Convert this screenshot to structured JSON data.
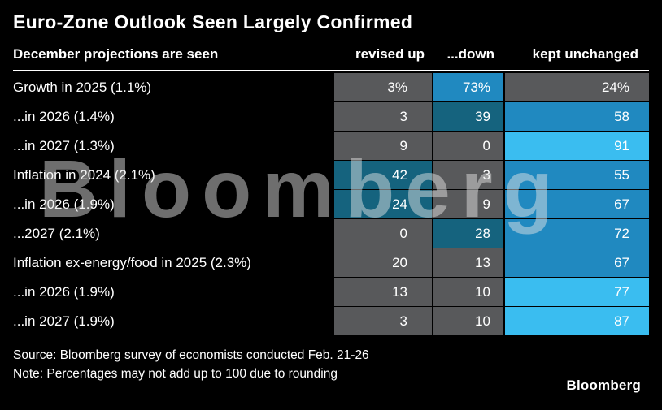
{
  "title": "Euro-Zone Outlook Seen Largely Confirmed",
  "watermark": "Bloomberg",
  "table": {
    "header": {
      "label": "December projections are seen",
      "revised_up": "revised up",
      "down": "...down",
      "kept_unchanged": "kept unchanged"
    },
    "rows": [
      {
        "label": "Growth in 2025 (1.1%)",
        "cells": [
          {
            "text": "3%",
            "color": "#58595b"
          },
          {
            "text": "73%",
            "color": "#2089c0"
          },
          {
            "text": "24%",
            "color": "#58595b"
          }
        ]
      },
      {
        "label": "...in 2026 (1.4%)",
        "cells": [
          {
            "text": "3",
            "color": "#58595b"
          },
          {
            "text": "39",
            "color": "#15637e"
          },
          {
            "text": "58",
            "color": "#2089c0"
          }
        ]
      },
      {
        "label": "...in 2027 (1.3%)",
        "cells": [
          {
            "text": "9",
            "color": "#58595b"
          },
          {
            "text": "0",
            "color": "#58595b"
          },
          {
            "text": "91",
            "color": "#3abdf0"
          }
        ]
      },
      {
        "label": "Inflation in 2024 (2.1%)",
        "cells": [
          {
            "text": "42",
            "color": "#15637e"
          },
          {
            "text": "3",
            "color": "#58595b"
          },
          {
            "text": "55",
            "color": "#2089c0"
          }
        ]
      },
      {
        "label": "...in 2026 (1.9%)",
        "cells": [
          {
            "text": "24",
            "color": "#15637e"
          },
          {
            "text": "9",
            "color": "#58595b"
          },
          {
            "text": "67",
            "color": "#2089c0"
          }
        ]
      },
      {
        "label": "...2027 (2.1%)",
        "cells": [
          {
            "text": "0",
            "color": "#58595b"
          },
          {
            "text": "28",
            "color": "#15637e"
          },
          {
            "text": "72",
            "color": "#2089c0"
          }
        ]
      },
      {
        "label": "Inflation ex-energy/food in 2025 (2.3%)",
        "cells": [
          {
            "text": "20",
            "color": "#58595b"
          },
          {
            "text": "13",
            "color": "#58595b"
          },
          {
            "text": "67",
            "color": "#2089c0"
          }
        ]
      },
      {
        "label": "...in 2026 (1.9%)",
        "cells": [
          {
            "text": "13",
            "color": "#58595b"
          },
          {
            "text": "10",
            "color": "#58595b"
          },
          {
            "text": "77",
            "color": "#3abdf0"
          }
        ]
      },
      {
        "label": "...in 2027 (1.9%)",
        "cells": [
          {
            "text": "3",
            "color": "#58595b"
          },
          {
            "text": "10",
            "color": "#58595b"
          },
          {
            "text": "87",
            "color": "#3abdf0"
          }
        ]
      }
    ]
  },
  "footer": {
    "source": "Source: Bloomberg survey of economists conducted Feb. 21-26",
    "note": "Note: Percentages may not add up to 100 due to rounding",
    "logo": "Bloomberg"
  },
  "colors": {
    "background": "#000000",
    "cell_gray": "#58595b",
    "cell_dark_blue": "#15637e",
    "cell_medium_blue": "#2089c0",
    "cell_light_blue": "#3abdf0",
    "text": "#ffffff"
  },
  "chart_data": {
    "type": "heatmap",
    "title": "Euro-Zone Outlook Seen Largely Confirmed",
    "subtitle": "December projections are seen",
    "columns": [
      "revised up",
      "...down",
      "kept unchanged"
    ],
    "rows": [
      "Growth in 2025 (1.1%)",
      "...in 2026 (1.4%)",
      "...in 2027 (1.3%)",
      "Inflation in 2024 (2.1%)",
      "...in 2026 (1.9%)",
      "...2027 (2.1%)",
      "Inflation ex-energy/food in 2025 (2.3%)",
      "...in 2026 (1.9%)",
      "...in 2027 (1.9%)"
    ],
    "values": [
      [
        3,
        73,
        24
      ],
      [
        3,
        39,
        58
      ],
      [
        9,
        0,
        91
      ],
      [
        42,
        3,
        55
      ],
      [
        24,
        9,
        67
      ],
      [
        0,
        28,
        72
      ],
      [
        20,
        13,
        67
      ],
      [
        13,
        10,
        77
      ],
      [
        3,
        10,
        87
      ]
    ],
    "unit": "%",
    "value_range": [
      0,
      100
    ],
    "color_scale": [
      "#58595b",
      "#15637e",
      "#2089c0",
      "#3abdf0"
    ],
    "source": "Bloomberg survey of economists conducted Feb. 21-26",
    "note": "Percentages may not add up to 100 due to rounding"
  }
}
